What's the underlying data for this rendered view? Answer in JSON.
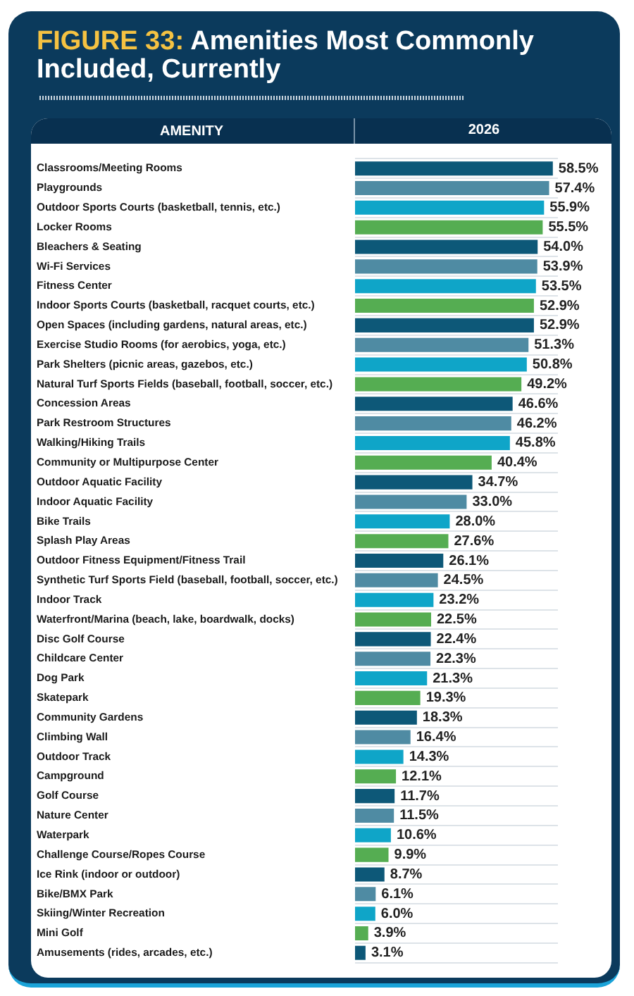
{
  "chart_data": {
    "type": "bar",
    "orientation": "horizontal",
    "title": "FIGURE 33: Amenities Most Commonly Included, Currently",
    "ylabel": "AMENITY",
    "grid": "y",
    "legend": false,
    "categories": [
      "Classrooms/Meeting Rooms",
      "Playgrounds",
      "Outdoor Sports Courts (basketball, tennis, etc.)",
      "Locker Rooms",
      "Bleachers & Seating",
      "Wi-Fi Services",
      "Fitness Center",
      "Indoor Sports Courts (basketball, racquet courts, etc.)",
      "Open Spaces (including gardens, natural areas, etc.)",
      "Exercise Studio Rooms (for aerobics, yoga, etc.)",
      "Park Shelters (picnic areas, gazebos, etc.)",
      "Natural Turf Sports Fields (baseball, football, soccer, etc.)",
      "Concession Areas",
      "Park Restroom Structures",
      "Walking/Hiking Trails",
      "Community or Multipurpose Center",
      "Outdoor Aquatic Facility",
      "Indoor Aquatic Facility",
      "Bike Trails",
      "Splash Play Areas",
      "Outdoor Fitness Equipment/Fitness Trail",
      "Synthetic Turf Sports Field (baseball, football, soccer, etc.)",
      "Indoor Track",
      "Waterfront/Marina (beach, lake, boardwalk, docks)",
      "Disc Golf Course",
      "Childcare Center",
      "Dog Park",
      "Skatepark",
      "Community Gardens",
      "Climbing Wall",
      "Outdoor Track",
      "Campground",
      "Golf Course",
      "Nature Center",
      "Waterpark",
      "Challenge Course/Ropes Course",
      "Ice Rink (indoor or outdoor)",
      "Bike/BMX Park",
      "Skiing/Winter Recreation",
      "Mini Golf",
      "Amusements (rides, arcades, etc.)"
    ],
    "series": [
      {
        "name": "2026",
        "values": [
          58.5,
          57.4,
          55.9,
          55.5,
          54.0,
          53.9,
          53.5,
          52.9,
          52.9,
          51.3,
          50.8,
          49.2,
          46.6,
          46.2,
          45.8,
          40.4,
          34.7,
          33.0,
          28.0,
          27.6,
          26.1,
          24.5,
          23.2,
          22.5,
          22.4,
          22.3,
          21.3,
          19.3,
          18.3,
          16.4,
          14.3,
          12.1,
          11.7,
          11.5,
          10.6,
          9.9,
          8.7,
          6.1,
          6.0,
          3.9,
          3.1
        ],
        "value_labels": [
          "58.5%",
          "57.4%",
          "55.9%",
          "55.5%",
          "54.0%",
          "53.9%",
          "53.5%",
          "52.9%",
          "52.9%",
          "51.3%",
          "50.8%",
          "49.2%",
          "46.6%",
          "46.2%",
          "45.8%",
          "40.4%",
          "34.7%",
          "33.0%",
          "28.0%",
          "27.6%",
          "26.1%",
          "24.5%",
          "23.2%",
          "22.5%",
          "22.4%",
          "22.3%",
          "21.3%",
          "19.3%",
          "18.3%",
          "16.4%",
          "14.3%",
          "12.1%",
          "11.7%",
          "11.5%",
          "10.6%",
          "9.9%",
          "8.7%",
          "6.1%",
          "6.0%",
          "3.9%",
          "3.1%"
        ],
        "colors": [
          "#0d5878",
          "#4f8ba3",
          "#0fa5c8",
          "#55ad52",
          "#0d5878",
          "#4f8ba3",
          "#0fa5c8",
          "#55ad52",
          "#0d5878",
          "#4f8ba3",
          "#0fa5c8",
          "#55ad52",
          "#0d5878",
          "#4f8ba3",
          "#0fa5c8",
          "#55ad52",
          "#0d5878",
          "#4f8ba3",
          "#0fa5c8",
          "#55ad52",
          "#0d5878",
          "#4f8ba3",
          "#0fa5c8",
          "#55ad52",
          "#0d5878",
          "#4f8ba3",
          "#0fa5c8",
          "#55ad52",
          "#0d5878",
          "#4f8ba3",
          "#0fa5c8",
          "#55ad52",
          "#0d5878",
          "#4f8ba3",
          "#0fa5c8",
          "#55ad52",
          "#0d5878",
          "#4f8ba3",
          "#0fa5c8",
          "#55ad52",
          "#0d5878"
        ]
      }
    ]
  }
}
